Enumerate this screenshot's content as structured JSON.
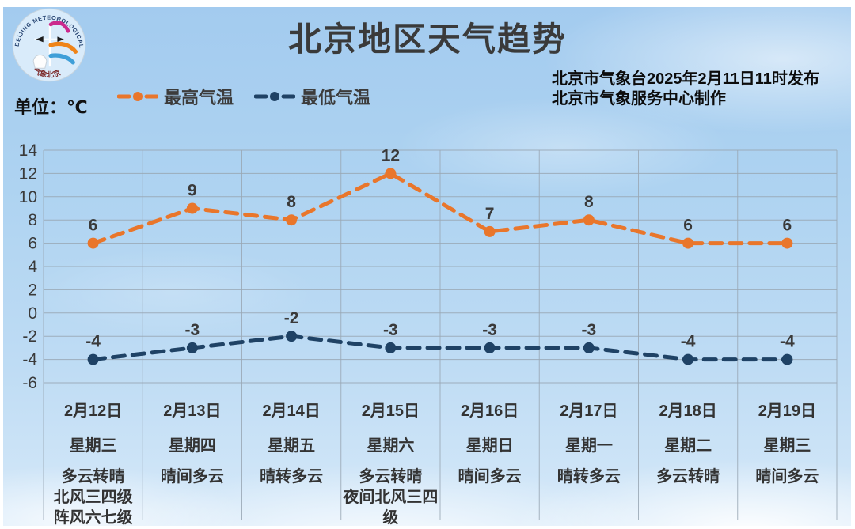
{
  "header": {
    "title": "北京地区天气趋势",
    "publisher_line1": "北京市气象台2025年2月11日11时发布",
    "publisher_line2": "北京市气象服务中心制作",
    "unit_label": "单位：℃",
    "logo": {
      "text_top": "BEIJING METEOROLOGICAL SERVICE",
      "text_bottom": "气象北京"
    }
  },
  "legend": [
    {
      "label": "最高气温",
      "color": "#E9762B"
    },
    {
      "label": "最低气温",
      "color": "#1F4265"
    }
  ],
  "chart_data": {
    "type": "line",
    "title": "北京地区天气趋势",
    "ylabel": "单位：℃",
    "categories": [
      "2月12日",
      "2月13日",
      "2月14日",
      "2月15日",
      "2月16日",
      "2月17日",
      "2月18日",
      "2月19日"
    ],
    "weekdays": [
      "星期三",
      "星期四",
      "星期五",
      "星期六",
      "星期日",
      "星期一",
      "星期二",
      "星期三"
    ],
    "weather": [
      [
        "多云转晴",
        "北风三四级",
        "阵风六七级"
      ],
      [
        "晴间多云"
      ],
      [
        "晴转多云"
      ],
      [
        "多云转晴",
        "夜间北风三四",
        "级"
      ],
      [
        "晴间多云"
      ],
      [
        "晴转多云"
      ],
      [
        "多云转晴"
      ],
      [
        "晴间多云"
      ]
    ],
    "series": [
      {
        "name": "最高气温",
        "color": "#E9762B",
        "values": [
          6,
          9,
          8,
          12,
          7,
          8,
          6,
          6
        ]
      },
      {
        "name": "最低气温",
        "color": "#1F4265",
        "values": [
          -4,
          -3,
          -2,
          -3,
          -3,
          -3,
          -4,
          -4
        ]
      }
    ],
    "ylim": [
      -6,
      14
    ],
    "ytick_step": 2,
    "grid": true,
    "legend_position": "top",
    "line_style": "dashed",
    "label_color": "#3a3a3a",
    "grid_color": "#9aa8b5"
  }
}
